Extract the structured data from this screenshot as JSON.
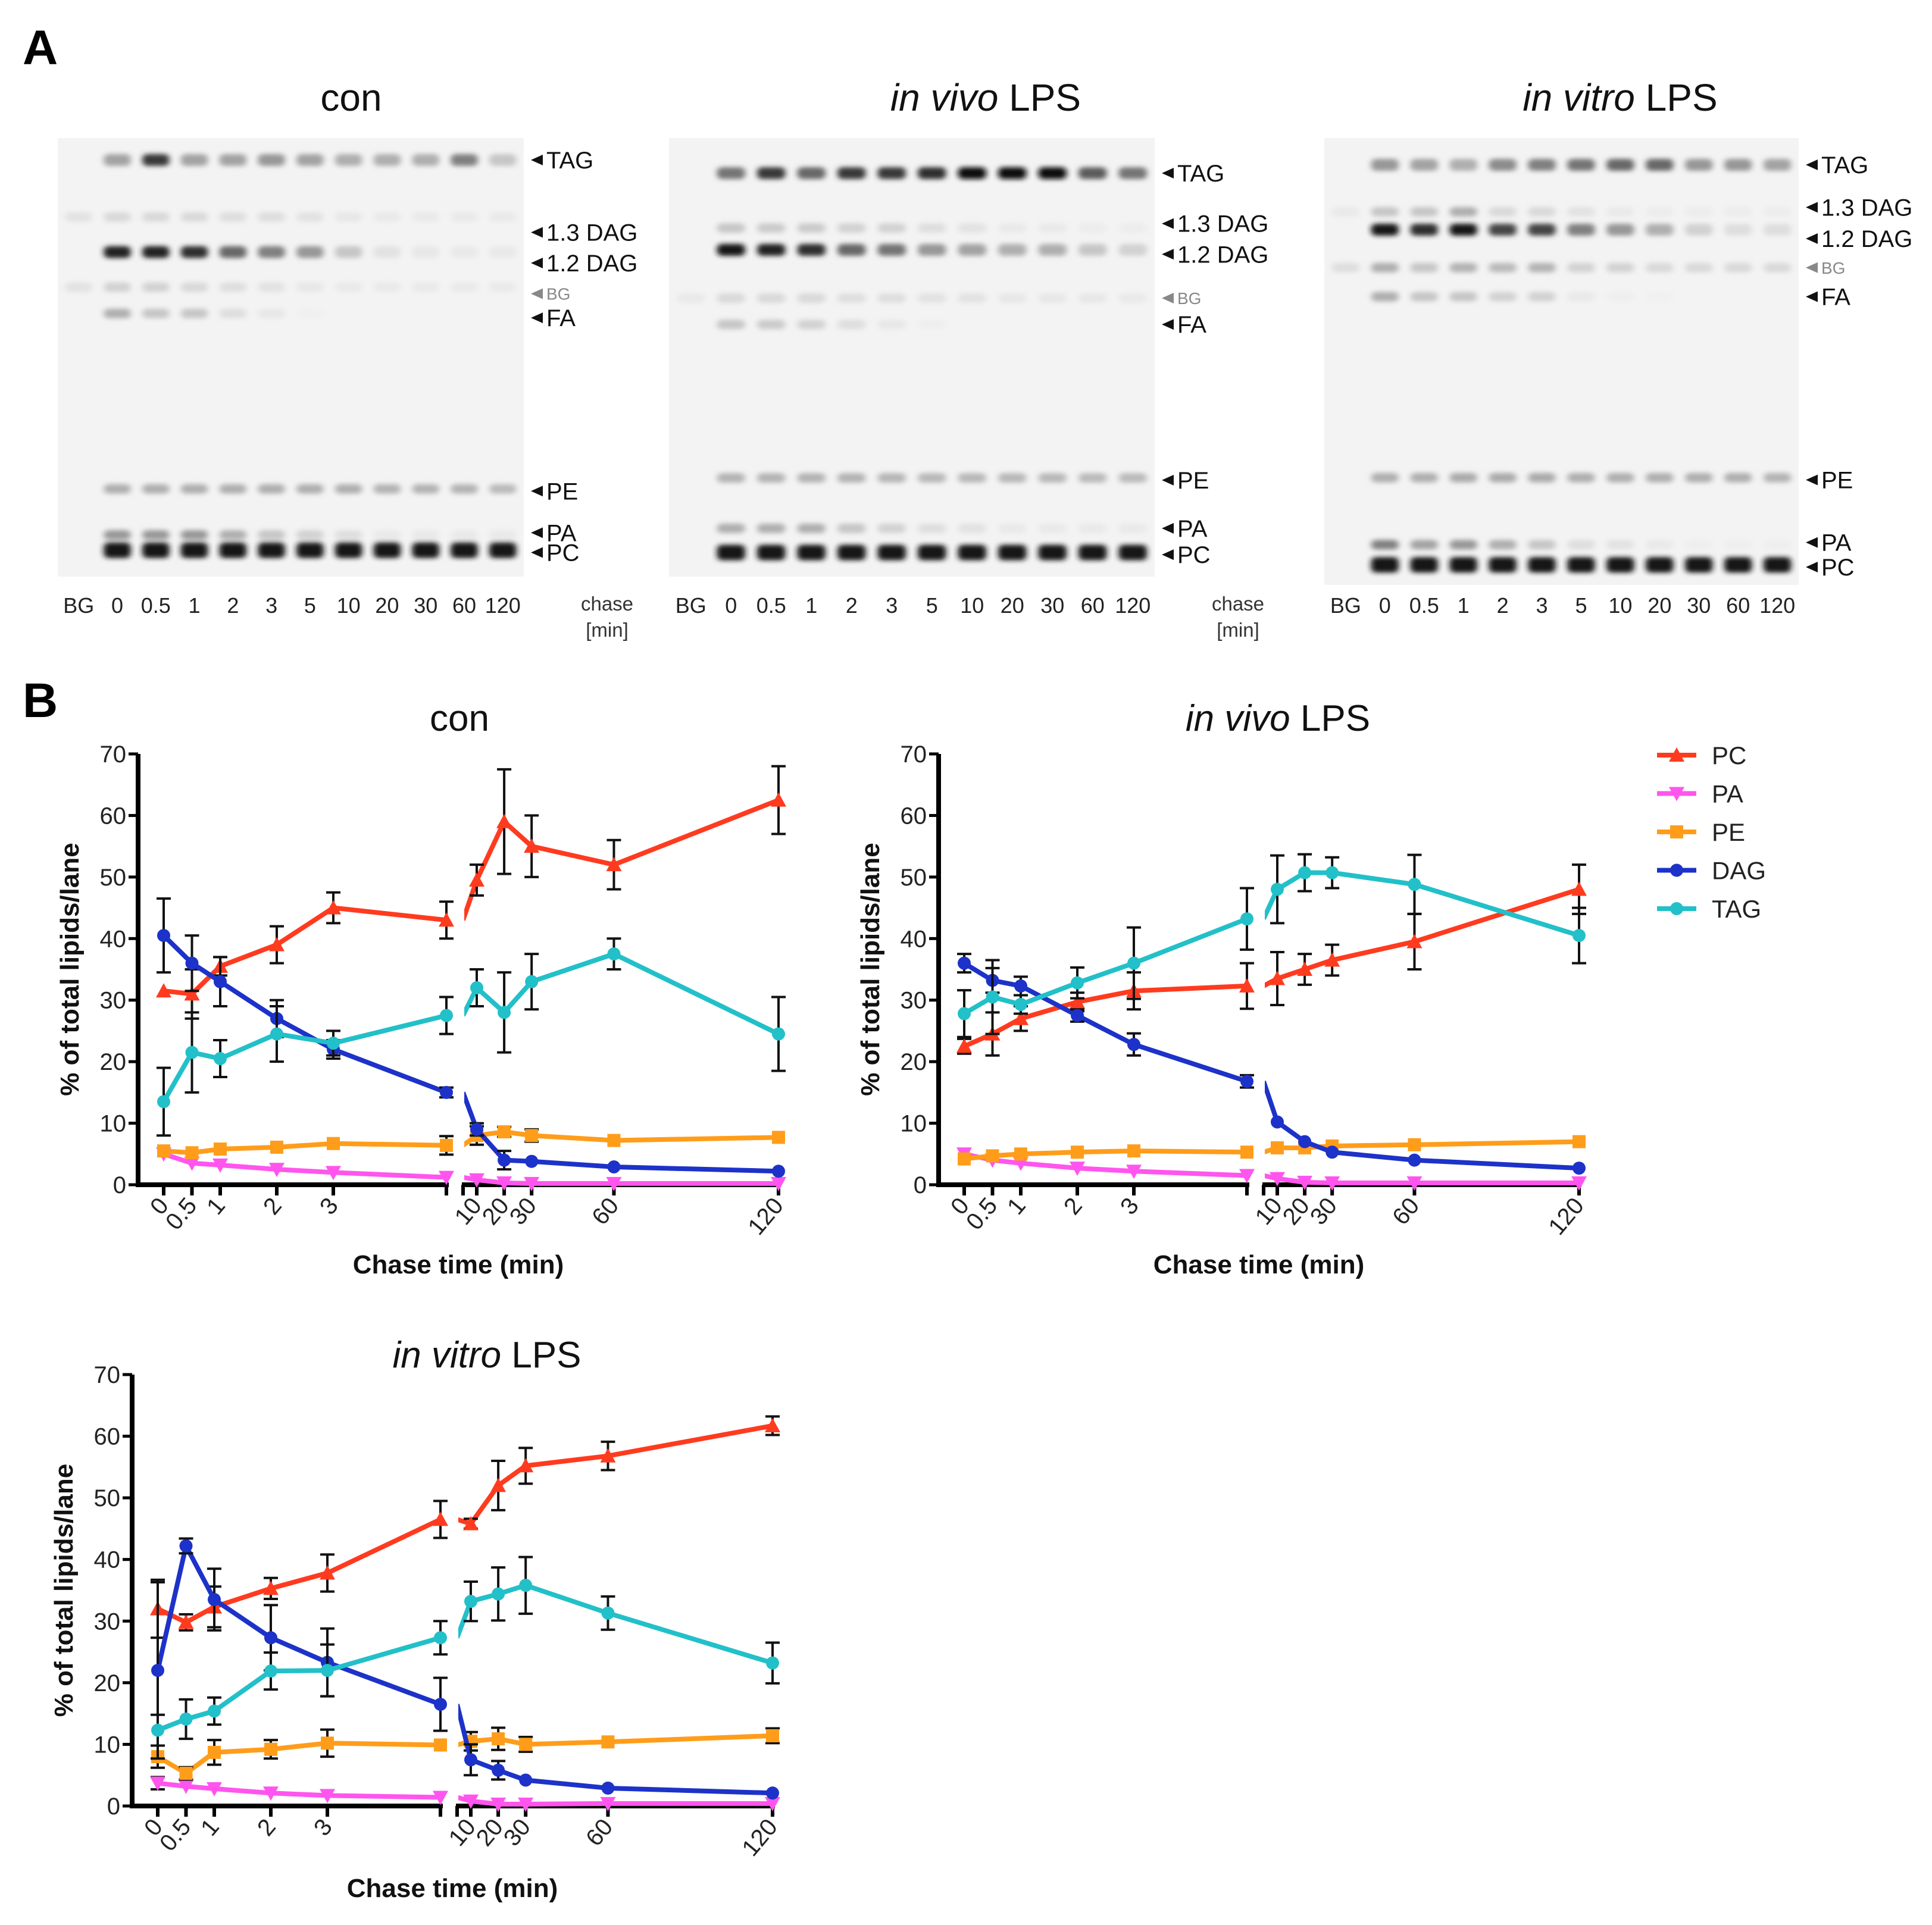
{
  "panels": {
    "a": "A",
    "b": "B"
  },
  "gels": [
    {
      "title_pre": "",
      "title_post": "con",
      "lanes": [
        "BG",
        "0",
        "0.5",
        "1",
        "2",
        "3",
        "5",
        "10",
        "20",
        "30",
        "60",
        "120"
      ],
      "chase_label": [
        "chase",
        "[min]"
      ],
      "bands": [
        {
          "name": "TAG",
          "intensity": [
            0,
            0.35,
            0.8,
            0.35,
            0.35,
            0.4,
            0.35,
            0.3,
            0.3,
            0.3,
            0.5,
            0.2
          ]
        },
        {
          "name": "1.3 DAG",
          "intensity": [
            0.08,
            0.12,
            0.12,
            0.12,
            0.1,
            0.1,
            0.08,
            0.06,
            0.05,
            0.05,
            0.05,
            0.05
          ]
        },
        {
          "name": "1.2 DAG",
          "intensity": [
            0,
            0.9,
            0.9,
            0.85,
            0.6,
            0.5,
            0.4,
            0.2,
            0.08,
            0.06,
            0.05,
            0.05
          ]
        },
        {
          "name": "BG",
          "intensity": [
            0.08,
            0.15,
            0.15,
            0.12,
            0.1,
            0.08,
            0.06,
            0.05,
            0.05,
            0.05,
            0.05,
            0.05
          ]
        },
        {
          "name": "FA",
          "intensity": [
            0,
            0.3,
            0.2,
            0.2,
            0.1,
            0.06,
            0.02,
            0,
            0,
            0,
            0,
            0
          ]
        },
        {
          "name": "PE",
          "intensity": [
            0,
            0.3,
            0.3,
            0.3,
            0.3,
            0.3,
            0.3,
            0.3,
            0.28,
            0.28,
            0.28,
            0.25
          ]
        },
        {
          "name": "PA",
          "intensity": [
            0,
            0.4,
            0.4,
            0.4,
            0.3,
            0.2,
            0.15,
            0.1,
            0.05,
            0.05,
            0.05,
            0.05
          ]
        },
        {
          "name": "PC",
          "intensity": [
            0,
            0.95,
            0.95,
            0.95,
            0.95,
            0.95,
            0.95,
            0.95,
            0.95,
            0.95,
            0.95,
            0.95
          ]
        }
      ]
    },
    {
      "title_pre": "in vivo",
      "title_post": " LPS",
      "lanes": [
        "BG",
        "0",
        "0.5",
        "1",
        "2",
        "3",
        "5",
        "10",
        "20",
        "30",
        "60",
        "120"
      ],
      "chase_label": [
        "chase",
        "[min]"
      ],
      "bands": [
        {
          "name": "TAG",
          "intensity": [
            0,
            0.55,
            0.8,
            0.6,
            0.8,
            0.8,
            0.85,
            1,
            1,
            1,
            0.65,
            0.55
          ]
        },
        {
          "name": "1.3 DAG",
          "intensity": [
            0,
            0.2,
            0.18,
            0.18,
            0.15,
            0.15,
            0.1,
            0.08,
            0.05,
            0.05,
            0.04,
            0.04
          ]
        },
        {
          "name": "1.2 DAG",
          "intensity": [
            0,
            0.95,
            0.9,
            0.85,
            0.6,
            0.55,
            0.4,
            0.35,
            0.3,
            0.3,
            0.2,
            0.15
          ]
        },
        {
          "name": "BG",
          "intensity": [
            0.05,
            0.12,
            0.12,
            0.12,
            0.1,
            0.1,
            0.08,
            0.08,
            0.06,
            0.06,
            0.06,
            0.05
          ]
        },
        {
          "name": "FA",
          "intensity": [
            0,
            0.2,
            0.18,
            0.15,
            0.1,
            0.06,
            0.03,
            0,
            0,
            0,
            0,
            0
          ]
        },
        {
          "name": "PE",
          "intensity": [
            0,
            0.28,
            0.28,
            0.28,
            0.28,
            0.27,
            0.26,
            0.26,
            0.26,
            0.26,
            0.25,
            0.25
          ]
        },
        {
          "name": "PA",
          "intensity": [
            0,
            0.3,
            0.3,
            0.3,
            0.2,
            0.15,
            0.1,
            0.08,
            0.05,
            0.05,
            0.05,
            0.05
          ]
        },
        {
          "name": "PC",
          "intensity": [
            0,
            0.95,
            0.95,
            0.95,
            0.95,
            0.95,
            0.95,
            0.95,
            0.95,
            0.95,
            0.95,
            0.95
          ]
        }
      ]
    },
    {
      "title_pre": "in vitro",
      "title_post": " LPS",
      "lanes": [
        "BG",
        "0",
        "0.5",
        "1",
        "2",
        "3",
        "5",
        "10",
        "20",
        "30",
        "60",
        "120"
      ],
      "chase_label": [],
      "bands": [
        {
          "name": "TAG",
          "intensity": [
            0,
            0.4,
            0.35,
            0.3,
            0.45,
            0.5,
            0.55,
            0.6,
            0.6,
            0.4,
            0.4,
            0.35
          ]
        },
        {
          "name": "1.3 DAG",
          "intensity": [
            0.05,
            0.2,
            0.2,
            0.3,
            0.12,
            0.12,
            0.08,
            0.05,
            0.04,
            0.04,
            0.04,
            0.04
          ]
        },
        {
          "name": "1.2 DAG",
          "intensity": [
            0,
            0.95,
            0.85,
            0.95,
            0.75,
            0.75,
            0.5,
            0.4,
            0.3,
            0.15,
            0.1,
            0.1
          ]
        },
        {
          "name": "BG",
          "intensity": [
            0.1,
            0.3,
            0.2,
            0.28,
            0.25,
            0.28,
            0.15,
            0.15,
            0.12,
            0.12,
            0.12,
            0.12
          ]
        },
        {
          "name": "FA",
          "intensity": [
            0,
            0.3,
            0.2,
            0.2,
            0.15,
            0.15,
            0.05,
            0.03,
            0.02,
            0,
            0,
            0
          ]
        },
        {
          "name": "PE",
          "intensity": [
            0,
            0.3,
            0.3,
            0.32,
            0.32,
            0.32,
            0.3,
            0.3,
            0.3,
            0.3,
            0.3,
            0.28
          ]
        },
        {
          "name": "PA",
          "intensity": [
            0,
            0.5,
            0.35,
            0.4,
            0.3,
            0.2,
            0.1,
            0.08,
            0.05,
            0.03,
            0.03,
            0.03
          ]
        },
        {
          "name": "PC",
          "intensity": [
            0,
            0.95,
            0.95,
            0.95,
            0.95,
            0.95,
            0.95,
            0.95,
            0.95,
            0.95,
            0.95,
            0.95
          ]
        }
      ]
    }
  ],
  "legend": [
    {
      "name": "PC",
      "color": "#ff3b1f",
      "marker": "triangle-up"
    },
    {
      "name": "PA",
      "color": "#ff55ee",
      "marker": "triangle-down"
    },
    {
      "name": "PE",
      "color": "#ff9d1a",
      "marker": "square"
    },
    {
      "name": "DAG",
      "color": "#1d32c8",
      "marker": "circle"
    },
    {
      "name": "TAG",
      "color": "#22c0c8",
      "marker": "circle"
    }
  ],
  "chart_data": [
    {
      "type": "line",
      "title_pre": "",
      "title_post": "con",
      "xlabel": "Chase time (min)",
      "ylabel": "% of total lipids/lane",
      "ylim": [
        0,
        70
      ],
      "yticks": [
        0,
        10,
        20,
        30,
        40,
        50,
        60,
        70
      ],
      "x": [
        0,
        0.5,
        1,
        2,
        3,
        5,
        10,
        20,
        30,
        60,
        120
      ],
      "xtick_labels": [
        "0",
        "0.5",
        "1",
        "2",
        "3",
        "",
        "10",
        "20",
        "30",
        "60",
        "120"
      ],
      "x_axis_break": 5,
      "series": [
        {
          "name": "PC",
          "values": [
            31.5,
            31,
            35.5,
            39,
            45,
            43,
            49.5,
            59,
            55,
            52,
            62.5
          ],
          "err": [
            0.5,
            4,
            1.5,
            3,
            2.5,
            3,
            2.5,
            8.5,
            5,
            4,
            5.5
          ]
        },
        {
          "name": "PA",
          "values": [
            5,
            3.5,
            3.2,
            2.5,
            2,
            1.2,
            0.8,
            0.3,
            0.2,
            0.2,
            0.2
          ],
          "err": [
            0.5,
            0.3,
            0.3,
            0.3,
            0.3,
            0.2,
            0.2,
            0.1,
            0.1,
            0.1,
            0.1
          ]
        },
        {
          "name": "PE",
          "values": [
            5.5,
            5.2,
            5.8,
            6.1,
            6.7,
            6.4,
            8,
            8.6,
            8,
            7.2,
            7.7
          ],
          "err": [
            0.5,
            0.5,
            0.5,
            0.5,
            0.5,
            1.5,
            1.5,
            0.8,
            1,
            0.5,
            0.5
          ]
        },
        {
          "name": "DAG",
          "values": [
            40.5,
            36,
            33,
            27,
            22,
            15,
            9,
            4,
            3.8,
            2.9,
            2.2
          ],
          "err": [
            6,
            4.5,
            4,
            3,
            1.5,
            0.8,
            1,
            1.5,
            0.5,
            0.3,
            0.3
          ]
        },
        {
          "name": "TAG",
          "values": [
            13.5,
            21.5,
            20.5,
            24.5,
            23,
            27.5,
            32,
            28,
            33,
            37.5,
            24.5
          ],
          "err": [
            5.5,
            6.5,
            3,
            4.5,
            2,
            3,
            3,
            6.5,
            4.5,
            2.5,
            6
          ]
        }
      ]
    },
    {
      "type": "line",
      "title_pre": "in vivo",
      "title_post": " LPS",
      "xlabel": "Chase time (min)",
      "ylabel": "% of total lipids/lane",
      "ylim": [
        0,
        70
      ],
      "yticks": [
        0,
        10,
        20,
        30,
        40,
        50,
        60,
        70
      ],
      "x": [
        0,
        0.5,
        1,
        2,
        3,
        5,
        10,
        20,
        30,
        60,
        120
      ],
      "xtick_labels": [
        "0",
        "0.5",
        "1",
        "2",
        "3",
        "",
        "10",
        "20",
        "30",
        "60",
        "120"
      ],
      "x_axis_break": 5,
      "series": [
        {
          "name": "PC",
          "values": [
            22.5,
            24.5,
            27,
            29.7,
            31.5,
            32.3,
            33.5,
            35,
            36.5,
            39.5,
            48
          ],
          "err": [
            1.2,
            3.5,
            2,
            1.5,
            3,
            3.7,
            4.3,
            2.5,
            2.5,
            4.5,
            4
          ]
        },
        {
          "name": "PA",
          "values": [
            5,
            4,
            3.5,
            2.7,
            2.2,
            1.5,
            1,
            0.4,
            0.3,
            0.3,
            0.3
          ],
          "err": [
            0.4,
            0.3,
            0.3,
            0.3,
            0.3,
            0.2,
            0.2,
            0.1,
            0.1,
            0.1,
            0.1
          ]
        },
        {
          "name": "PE",
          "values": [
            4.2,
            4.7,
            5,
            5.3,
            5.5,
            5.3,
            6,
            6,
            6.3,
            6.5,
            7
          ],
          "err": [
            0.4,
            0.4,
            0.4,
            0.4,
            0.4,
            0.4,
            0.4,
            0.4,
            0.4,
            0.4,
            0.4
          ]
        },
        {
          "name": "DAG",
          "values": [
            36,
            33.2,
            32.3,
            27.5,
            22.8,
            16.8,
            10.2,
            7,
            5.3,
            4,
            2.7
          ],
          "err": [
            1.5,
            2,
            1.5,
            1,
            1.8,
            1,
            0.5,
            0.5,
            0.3,
            0.3,
            0.3
          ]
        },
        {
          "name": "TAG",
          "values": [
            27.8,
            30.5,
            29.3,
            32.8,
            36,
            43.2,
            48,
            50.7,
            50.7,
            48.8,
            40.5
          ],
          "err": [
            3.8,
            6,
            1.5,
            2.5,
            5.8,
            5,
            5.5,
            3,
            2.5,
            4.8,
            4.5
          ]
        }
      ]
    },
    {
      "type": "line",
      "title_pre": "in vitro",
      "title_post": " LPS",
      "xlabel": "Chase time (min)",
      "ylabel": "% of total lipids/lane",
      "ylim": [
        0,
        70
      ],
      "yticks": [
        0,
        10,
        20,
        30,
        40,
        50,
        60,
        70
      ],
      "x": [
        0,
        0.5,
        1,
        2,
        3,
        5,
        10,
        20,
        30,
        60,
        120
      ],
      "xtick_labels": [
        "0",
        "0.5",
        "1",
        "2",
        "3",
        "",
        "10",
        "20",
        "30",
        "60",
        "120"
      ],
      "x_axis_break": 5,
      "series": [
        {
          "name": "PC",
          "values": [
            32,
            29.8,
            32.3,
            35.3,
            37.8,
            46.5,
            45.8,
            52,
            55.2,
            56.8,
            61.7
          ],
          "err": [
            4.7,
            1.3,
            3.3,
            1.7,
            3,
            3,
            0.8,
            4,
            2.9,
            2.3,
            1.5
          ]
        },
        {
          "name": "PA",
          "values": [
            3.7,
            3.2,
            2.8,
            2.1,
            1.7,
            1.4,
            0.8,
            0.3,
            0.3,
            0.4,
            0.4
          ],
          "err": [
            1,
            0.3,
            0.3,
            0.3,
            0.3,
            0.2,
            0.2,
            0.1,
            0.1,
            0.1,
            0.1
          ]
        },
        {
          "name": "PE",
          "values": [
            8,
            5.3,
            8.7,
            9.2,
            10.2,
            9.9,
            10.5,
            10.9,
            10,
            10.4,
            11.4
          ],
          "err": [
            1.8,
            1,
            2,
            1.5,
            2.2,
            0.5,
            1.5,
            1.8,
            1.2,
            0.5,
            1.2
          ]
        },
        {
          "name": "DAG",
          "values": [
            22,
            42.2,
            33.5,
            27.3,
            23.3,
            16.5,
            7.5,
            5.8,
            4.2,
            2.9,
            2.1
          ],
          "err": [
            14.3,
            1.2,
            5,
            5.3,
            5.5,
            4.3,
            2.5,
            1.5,
            0.4,
            0.3,
            0.3
          ]
        },
        {
          "name": "TAG",
          "values": [
            12.3,
            14.1,
            15.4,
            21.9,
            22,
            27.3,
            33.2,
            34.4,
            35.8,
            31.3,
            23.2
          ],
          "err": [
            2.5,
            3.2,
            2.2,
            3,
            4.2,
            2.7,
            3.2,
            4.3,
            4.6,
            2.7,
            3.3
          ]
        }
      ]
    }
  ]
}
